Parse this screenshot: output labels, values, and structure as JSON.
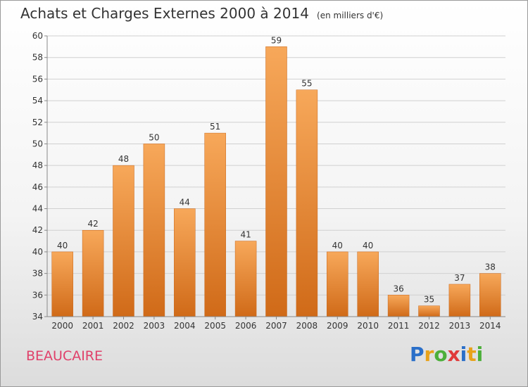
{
  "page": {
    "title": "Achats et Charges Externes 2000 à 2014",
    "subtitle": "(en milliers d'€)",
    "city": "BEAUCAIRE",
    "logo_letters": [
      {
        "char": "P",
        "color": "#2a6fc9"
      },
      {
        "char": "r",
        "color": "#e8a21a"
      },
      {
        "char": "o",
        "color": "#4caf3a"
      },
      {
        "char": "x",
        "color": "#e03a3a"
      },
      {
        "char": "i",
        "color": "#2a6fc9"
      },
      {
        "char": "t",
        "color": "#e8a21a"
      },
      {
        "char": "i",
        "color": "#4caf3a"
      }
    ]
  },
  "chart_data": {
    "type": "bar",
    "title": "Achats et Charges Externes 2000 à 2014",
    "subtitle": "(en milliers d'€)",
    "categories": [
      "2000",
      "2001",
      "2002",
      "2003",
      "2004",
      "2005",
      "2006",
      "2007",
      "2008",
      "2009",
      "2010",
      "2011",
      "2012",
      "2013",
      "2014"
    ],
    "values": [
      40,
      42,
      48,
      50,
      44,
      51,
      41,
      59,
      55,
      40,
      40,
      36,
      35,
      37,
      38
    ],
    "ylim": [
      34,
      60
    ],
    "yticks": [
      34,
      36,
      38,
      40,
      42,
      44,
      46,
      48,
      50,
      52,
      54,
      56,
      58,
      60
    ],
    "grid": true,
    "bar_color_top": "#f7a85a",
    "bar_color_bottom": "#d06a18"
  }
}
